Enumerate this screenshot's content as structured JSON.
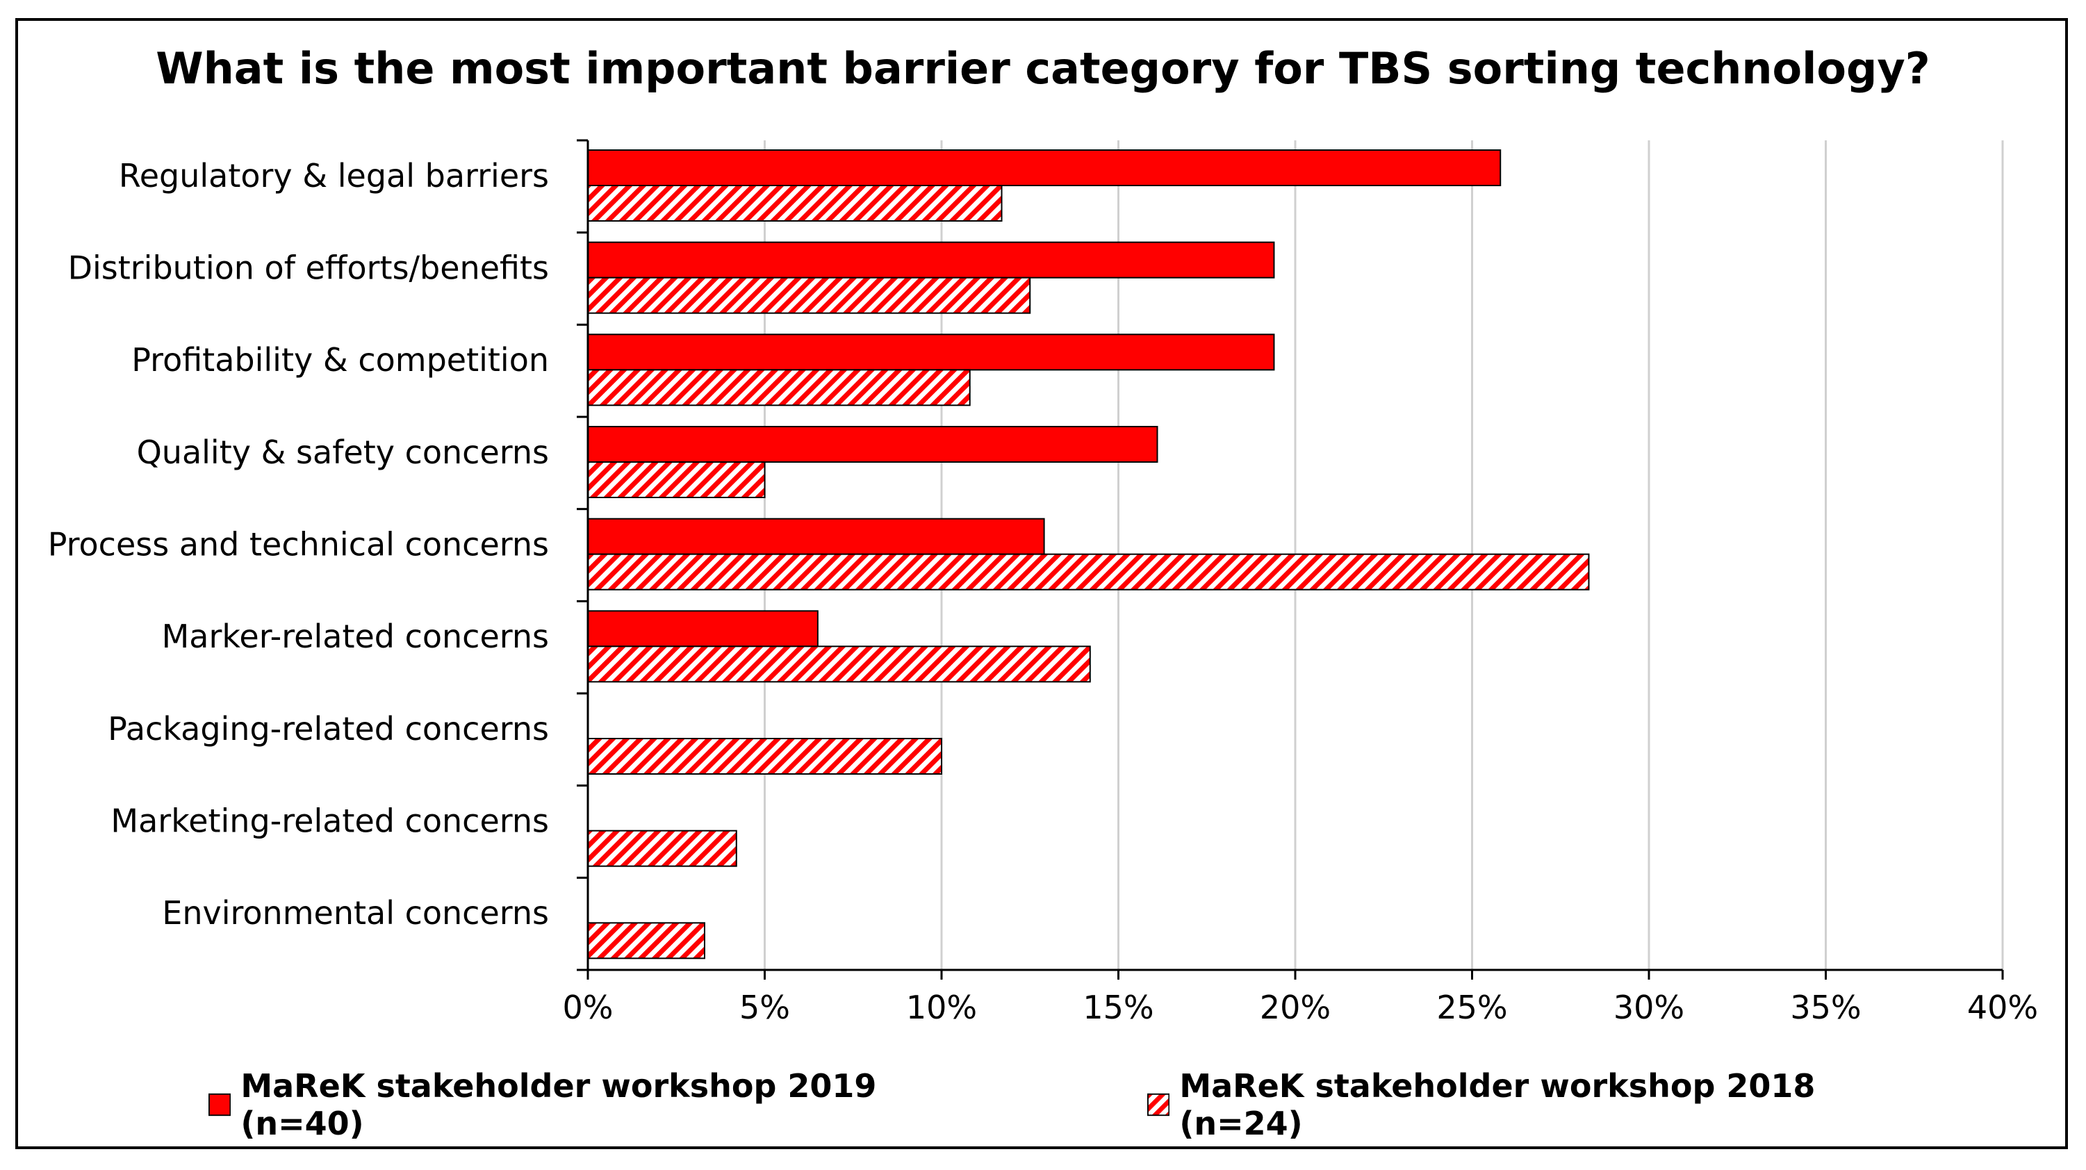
{
  "chart_data": {
    "type": "bar",
    "orientation": "horizontal",
    "title": "What is the most important barrier category for TBS sorting technology?",
    "categories": [
      "Regulatory & legal barriers",
      "Distribution of efforts/benefits",
      "Profitability & competition",
      "Quality & safety concerns",
      "Process and technical concerns",
      "Marker-related concerns",
      "Packaging-related concerns",
      "Marketing-related concerns",
      "Environmental concerns"
    ],
    "series": [
      {
        "name": "MaReK stakeholder workshop 2019 (n=40)",
        "style": "solid",
        "color": "#ff0000",
        "values": [
          25.8,
          19.4,
          19.4,
          16.1,
          12.9,
          6.5,
          0,
          0,
          0
        ]
      },
      {
        "name": "MaReK stakeholder workshop 2018 (n=24)",
        "style": "hatched",
        "color": "#ff0000",
        "values": [
          11.7,
          12.5,
          10.8,
          5.0,
          28.3,
          14.2,
          10.0,
          4.2,
          3.3
        ]
      }
    ],
    "xlim": [
      0,
      40
    ],
    "xticks": [
      "0%",
      "5%",
      "10%",
      "15%",
      "20%",
      "25%",
      "30%",
      "35%",
      "40%"
    ],
    "grid": "vertical",
    "legend_position": "bottom"
  }
}
